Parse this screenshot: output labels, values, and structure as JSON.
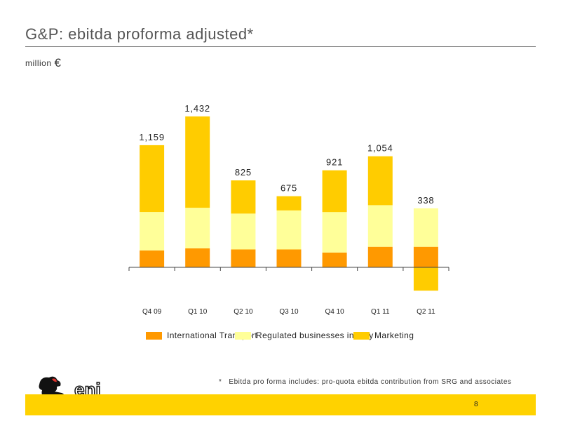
{
  "title": "G&P: ebitda proforma adjusted*",
  "subtitle": {
    "unit": "million",
    "currency": "€"
  },
  "footnote": {
    "marker": "*",
    "text": "Ebitda pro forma includes: pro-quota ebitda contribution from SRG and associates"
  },
  "page_number": "8",
  "logo_text": "eni",
  "colors": {
    "international_transport": "#ff9900",
    "regulated": "#ffff99",
    "marketing": "#ffcc00",
    "footer": "#ffd200"
  },
  "chart_data": {
    "type": "bar",
    "stacked": true,
    "categories": [
      "Q4 09",
      "Q1 10",
      "Q2 10",
      "Q3 10",
      "Q4 10",
      "Q1 11",
      "Q2 11"
    ],
    "totals": [
      1159,
      1432,
      825,
      675,
      921,
      1054,
      338
    ],
    "total_labels": [
      "1,159",
      "1,432",
      "825",
      "675",
      "921",
      "1,054",
      "338"
    ],
    "series": [
      {
        "name": "International Transport",
        "values": [
          160,
          180,
          170,
          170,
          140,
          195,
          195
        ]
      },
      {
        "name": "Regulated businesses in Italy",
        "values": [
          365,
          385,
          340,
          370,
          385,
          395,
          365
        ]
      },
      {
        "name": "Marketing",
        "values": [
          634,
          867,
          315,
          135,
          396,
          464,
          -222
        ]
      }
    ],
    "legend_position": "bottom",
    "grid": false,
    "ylim": [
      -250,
      1500
    ]
  }
}
